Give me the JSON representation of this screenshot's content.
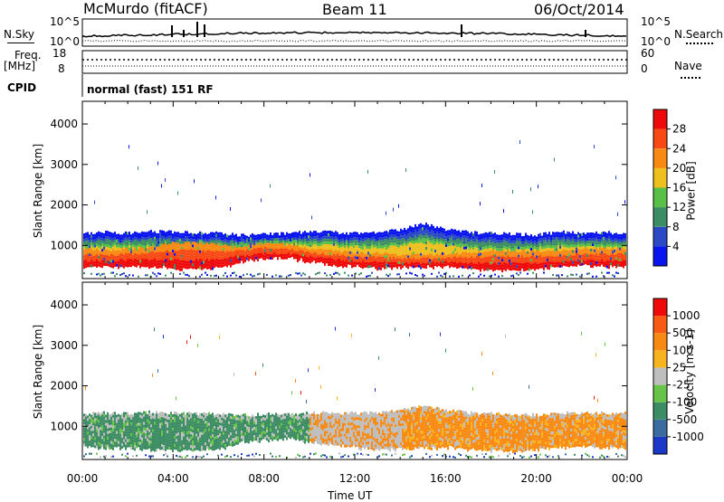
{
  "header": {
    "station": "McMurdo (fitACF)",
    "beam": "Beam 11",
    "date": "06/Oct/2014"
  },
  "status_panel": {
    "nsky_label": "N.Sky",
    "nsky_ticks": [
      "10^5",
      "10^0"
    ],
    "nsearch_label": "N.Search",
    "nsearch_ticks": [
      "10^5",
      "10^0"
    ],
    "freq_label_1": "Freq.",
    "freq_label_2": "[MHz]",
    "freq_ticks": [
      "18",
      "8"
    ],
    "nave_label": "Nave",
    "nave_ticks": [
      "60",
      "0"
    ],
    "cpid_label": "CPID",
    "cpid_text": "normal (fast) 151 RF"
  },
  "chart_data": [
    {
      "type": "heatmap",
      "name": "power-panel",
      "ylabel": "Slant Range [km]",
      "yticks": [
        1000,
        2000,
        3000,
        4000
      ],
      "ylim": [
        180,
        4560
      ],
      "xlim": [
        0,
        24
      ],
      "colorbar": {
        "label": "Power [dB]",
        "ticks": [
          "4",
          "8",
          "12",
          "16",
          "20",
          "24",
          "28"
        ],
        "colors": [
          "#0a14ee",
          "#2b49c6",
          "#3c8c64",
          "#58c048",
          "#eec01e",
          "#f88a14",
          "#f84814",
          "#ee0a0a"
        ]
      },
      "scatter_upper_km": [
        1280,
        1320,
        1300,
        1350,
        1330,
        1320,
        1300,
        1250,
        1280,
        1300,
        1330,
        1320,
        1300,
        1330,
        1380,
        1540,
        1400,
        1320,
        1300,
        1280,
        1260,
        1330,
        1300,
        1320,
        1300
      ],
      "scatter_lower_km": [
        480,
        500,
        500,
        500,
        450,
        450,
        480,
        620,
        680,
        720,
        620,
        550,
        500,
        450,
        480,
        480,
        500,
        450,
        400,
        420,
        450,
        500,
        520,
        500,
        500
      ],
      "core_upper_km": [
        950,
        900,
        950,
        1000,
        1100,
        1100,
        1050,
        1000,
        1100,
        1050,
        950,
        900,
        850,
        850,
        800,
        800,
        820,
        850,
        900,
        900,
        900,
        900,
        950,
        950,
        950
      ],
      "core_lower_km": [
        500,
        520,
        520,
        520,
        450,
        450,
        500,
        650,
        700,
        720,
        650,
        580,
        520,
        500,
        500,
        500,
        520,
        480,
        430,
        430,
        450,
        500,
        520,
        500,
        500
      ]
    },
    {
      "type": "heatmap",
      "name": "velocity-panel",
      "ylabel": "Slant Range [km]",
      "yticks": [
        1000,
        2000,
        3000,
        4000
      ],
      "ylim": [
        180,
        4560
      ],
      "xlim": [
        0,
        24
      ],
      "colorbar": {
        "label": "Velocity [m s-1]",
        "ticks": [
          "1000",
          "500",
          "100",
          "25",
          "-25",
          "-100",
          "-500",
          "-1000"
        ],
        "colors": [
          "#1c38c8",
          "#3a6ca0",
          "#3c8c64",
          "#68c448",
          "#bebebe",
          "#f8b41e",
          "#f88a14",
          "#f85a14",
          "#ee0a0a"
        ]
      },
      "scatter_upper_km": [
        1300,
        1330,
        1320,
        1350,
        1330,
        1320,
        1300,
        1280,
        1300,
        1300,
        1340,
        1330,
        1330,
        1340,
        1400,
        1520,
        1400,
        1330,
        1310,
        1290,
        1280,
        1330,
        1320,
        1330,
        1320
      ],
      "scatter_lower_km": [
        500,
        500,
        480,
        450,
        420,
        420,
        450,
        620,
        680,
        720,
        620,
        560,
        500,
        450,
        470,
        480,
        500,
        460,
        420,
        420,
        450,
        500,
        520,
        500,
        500
      ]
    }
  ],
  "xaxis": {
    "ticks": [
      "00:00",
      "04:00",
      "08:00",
      "12:00",
      "16:00",
      "20:00",
      "00:00"
    ],
    "label": "Time UT"
  }
}
